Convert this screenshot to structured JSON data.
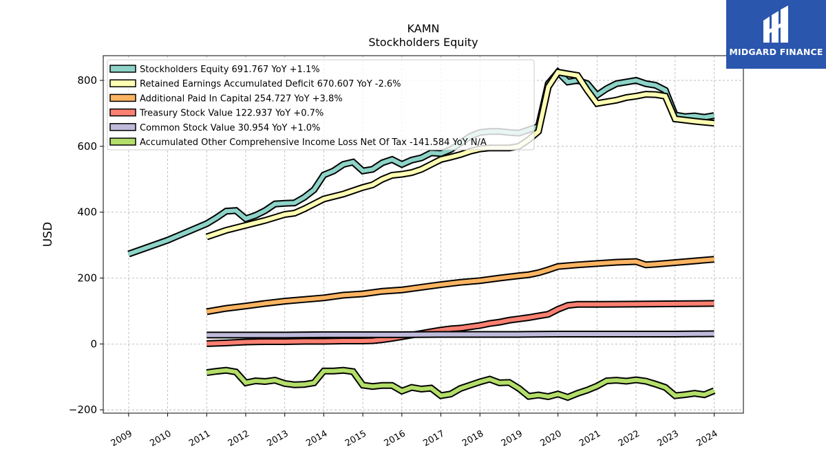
{
  "brand": {
    "name": "MIDGARD FINANCE"
  },
  "chart_data": {
    "type": "line",
    "title": "KAMN",
    "subtitle": "Stockholders  Equity",
    "ylabel": "USD",
    "xlim": [
      2008.35,
      2024.75
    ],
    "ylim": [
      -210,
      875
    ],
    "yticks": [
      -200,
      0,
      200,
      400,
      600,
      800
    ],
    "xticks": [
      "2009",
      "2010",
      "2011",
      "2012",
      "2013",
      "2014",
      "2015",
      "2016",
      "2017",
      "2018",
      "2019",
      "2020",
      "2021",
      "2022",
      "2023",
      "2024"
    ],
    "grid": true,
    "legend_position": "top-left",
    "series": [
      {
        "name": "Stockholders Equity  691.767 YoY +1.1%",
        "color": "#8dd3c7",
        "points": [
          [
            2009.0,
            273
          ],
          [
            2010.0,
            315
          ],
          [
            2011.0,
            365
          ],
          [
            2011.25,
            383
          ],
          [
            2011.5,
            403
          ],
          [
            2011.75,
            405
          ],
          [
            2012.0,
            380
          ],
          [
            2012.25,
            390
          ],
          [
            2012.5,
            405
          ],
          [
            2012.75,
            425
          ],
          [
            2013.0,
            427
          ],
          [
            2013.25,
            428
          ],
          [
            2013.5,
            445
          ],
          [
            2013.75,
            468
          ],
          [
            2014.0,
            513
          ],
          [
            2014.25,
            525
          ],
          [
            2014.5,
            545
          ],
          [
            2014.75,
            552
          ],
          [
            2015.0,
            525
          ],
          [
            2015.25,
            530
          ],
          [
            2015.5,
            550
          ],
          [
            2015.75,
            560
          ],
          [
            2016.0,
            545
          ],
          [
            2016.25,
            558
          ],
          [
            2016.5,
            565
          ],
          [
            2016.75,
            580
          ],
          [
            2017.0,
            578
          ],
          [
            2017.25,
            590
          ],
          [
            2017.5,
            610
          ],
          [
            2017.75,
            630
          ],
          [
            2018.0,
            642
          ],
          [
            2018.25,
            645
          ],
          [
            2018.5,
            645
          ],
          [
            2018.75,
            642
          ],
          [
            2019.0,
            640
          ],
          [
            2019.25,
            650
          ],
          [
            2019.5,
            660
          ],
          [
            2019.75,
            790
          ],
          [
            2020.0,
            825
          ],
          [
            2020.25,
            795
          ],
          [
            2020.5,
            800
          ],
          [
            2020.75,
            790
          ],
          [
            2021.0,
            755
          ],
          [
            2021.25,
            775
          ],
          [
            2021.5,
            790
          ],
          [
            2021.75,
            795
          ],
          [
            2022.0,
            800
          ],
          [
            2022.25,
            790
          ],
          [
            2022.5,
            785
          ],
          [
            2022.75,
            770
          ],
          [
            2023.0,
            695
          ],
          [
            2023.25,
            690
          ],
          [
            2023.5,
            692
          ],
          [
            2023.75,
            688
          ],
          [
            2024.0,
            693
          ]
        ]
      },
      {
        "name": "Retained Earnings Accumulated Deficit  670.607 YoY -2.6%",
        "color": "#ffffb3",
        "points": [
          [
            2011.0,
            325
          ],
          [
            2011.5,
            345
          ],
          [
            2012.0,
            360
          ],
          [
            2012.5,
            375
          ],
          [
            2013.0,
            393
          ],
          [
            2013.25,
            397
          ],
          [
            2013.5,
            410
          ],
          [
            2013.75,
            425
          ],
          [
            2014.0,
            440
          ],
          [
            2014.5,
            455
          ],
          [
            2015.0,
            475
          ],
          [
            2015.25,
            483
          ],
          [
            2015.5,
            500
          ],
          [
            2015.75,
            512
          ],
          [
            2016.0,
            515
          ],
          [
            2016.25,
            520
          ],
          [
            2016.5,
            530
          ],
          [
            2016.75,
            545
          ],
          [
            2017.0,
            560
          ],
          [
            2017.25,
            567
          ],
          [
            2017.5,
            575
          ],
          [
            2017.75,
            585
          ],
          [
            2018.0,
            592
          ],
          [
            2018.25,
            595
          ],
          [
            2018.5,
            595
          ],
          [
            2018.75,
            595
          ],
          [
            2019.0,
            600
          ],
          [
            2019.25,
            620
          ],
          [
            2019.5,
            645
          ],
          [
            2019.75,
            780
          ],
          [
            2020.0,
            825
          ],
          [
            2020.25,
            820
          ],
          [
            2020.5,
            815
          ],
          [
            2020.75,
            770
          ],
          [
            2021.0,
            730
          ],
          [
            2021.25,
            735
          ],
          [
            2021.5,
            740
          ],
          [
            2021.75,
            748
          ],
          [
            2022.0,
            752
          ],
          [
            2022.25,
            758
          ],
          [
            2022.5,
            757
          ],
          [
            2022.75,
            752
          ],
          [
            2023.0,
            683
          ],
          [
            2023.5,
            676
          ],
          [
            2024.0,
            670
          ]
        ]
      },
      {
        "name": "Additional Paid In Capital  254.727 YoY +3.8%",
        "color": "#fdb462",
        "points": [
          [
            2011.0,
            98
          ],
          [
            2011.5,
            108
          ],
          [
            2012.0,
            115
          ],
          [
            2012.5,
            123
          ],
          [
            2013.0,
            130
          ],
          [
            2013.5,
            135
          ],
          [
            2014.0,
            140
          ],
          [
            2014.5,
            148
          ],
          [
            2015.0,
            152
          ],
          [
            2015.5,
            160
          ],
          [
            2016.0,
            164
          ],
          [
            2016.5,
            172
          ],
          [
            2017.0,
            180
          ],
          [
            2017.5,
            187
          ],
          [
            2018.0,
            192
          ],
          [
            2018.5,
            200
          ],
          [
            2019.0,
            207
          ],
          [
            2019.25,
            210
          ],
          [
            2019.5,
            216
          ],
          [
            2019.75,
            225
          ],
          [
            2020.0,
            235
          ],
          [
            2020.5,
            240
          ],
          [
            2021.0,
            244
          ],
          [
            2021.5,
            248
          ],
          [
            2022.0,
            250
          ],
          [
            2022.25,
            240
          ],
          [
            2022.5,
            242
          ],
          [
            2023.0,
            247
          ],
          [
            2023.5,
            252
          ],
          [
            2024.0,
            257
          ]
        ]
      },
      {
        "name": "Treasury Stock Value  122.937 YoY +0.7%",
        "color": "#fb8072",
        "points": [
          [
            2011.0,
            1
          ],
          [
            2011.5,
            3
          ],
          [
            2012.0,
            6
          ],
          [
            2012.5,
            7
          ],
          [
            2013.0,
            7
          ],
          [
            2013.5,
            8
          ],
          [
            2014.0,
            8
          ],
          [
            2014.5,
            9
          ],
          [
            2015.0,
            9
          ],
          [
            2015.25,
            10
          ],
          [
            2015.5,
            13
          ],
          [
            2015.75,
            17
          ],
          [
            2016.0,
            22
          ],
          [
            2016.25,
            27
          ],
          [
            2016.5,
            32
          ],
          [
            2016.75,
            37
          ],
          [
            2017.0,
            42
          ],
          [
            2017.25,
            46
          ],
          [
            2017.5,
            48
          ],
          [
            2017.75,
            52
          ],
          [
            2018.0,
            56
          ],
          [
            2018.25,
            62
          ],
          [
            2018.5,
            66
          ],
          [
            2018.75,
            72
          ],
          [
            2019.0,
            76
          ],
          [
            2019.25,
            80
          ],
          [
            2019.5,
            85
          ],
          [
            2019.75,
            90
          ],
          [
            2020.0,
            105
          ],
          [
            2020.25,
            117
          ],
          [
            2020.5,
            120
          ],
          [
            2021.0,
            120
          ],
          [
            2022.0,
            121
          ],
          [
            2023.0,
            122
          ],
          [
            2024.0,
            123
          ]
        ]
      },
      {
        "name": "Common Stock Value  30.954 YoY +1.0%",
        "color": "#bebada",
        "points": [
          [
            2011.0,
            27
          ],
          [
            2012.0,
            27
          ],
          [
            2013.0,
            27
          ],
          [
            2014.0,
            28
          ],
          [
            2015.0,
            28
          ],
          [
            2016.0,
            28
          ],
          [
            2017.0,
            29
          ],
          [
            2018.0,
            29
          ],
          [
            2019.0,
            29
          ],
          [
            2020.0,
            30
          ],
          [
            2021.0,
            30
          ],
          [
            2022.0,
            30
          ],
          [
            2023.0,
            30
          ],
          [
            2024.0,
            31
          ]
        ]
      },
      {
        "name": "Accumulated Other Comprehensive Income Loss Net Of Tax  -141.584 YoY N/A",
        "color": "#b3de69",
        "points": [
          [
            2011.0,
            -87
          ],
          [
            2011.25,
            -83
          ],
          [
            2011.5,
            -80
          ],
          [
            2011.75,
            -85
          ],
          [
            2012.0,
            -118
          ],
          [
            2012.25,
            -112
          ],
          [
            2012.5,
            -114
          ],
          [
            2012.75,
            -110
          ],
          [
            2013.0,
            -120
          ],
          [
            2013.25,
            -124
          ],
          [
            2013.5,
            -123
          ],
          [
            2013.75,
            -118
          ],
          [
            2014.0,
            -82
          ],
          [
            2014.25,
            -82
          ],
          [
            2014.5,
            -80
          ],
          [
            2014.75,
            -84
          ],
          [
            2015.0,
            -125
          ],
          [
            2015.25,
            -129
          ],
          [
            2015.5,
            -126
          ],
          [
            2015.75,
            -126
          ],
          [
            2016.0,
            -143
          ],
          [
            2016.25,
            -132
          ],
          [
            2016.5,
            -137
          ],
          [
            2016.75,
            -134
          ],
          [
            2017.0,
            -157
          ],
          [
            2017.25,
            -152
          ],
          [
            2017.5,
            -135
          ],
          [
            2017.75,
            -125
          ],
          [
            2018.0,
            -115
          ],
          [
            2018.25,
            -107
          ],
          [
            2018.5,
            -118
          ],
          [
            2018.75,
            -117
          ],
          [
            2019.0,
            -135
          ],
          [
            2019.25,
            -159
          ],
          [
            2019.5,
            -155
          ],
          [
            2019.75,
            -160
          ],
          [
            2020.0,
            -152
          ],
          [
            2020.25,
            -162
          ],
          [
            2020.5,
            -150
          ],
          [
            2020.75,
            -140
          ],
          [
            2021.0,
            -128
          ],
          [
            2021.25,
            -112
          ],
          [
            2021.5,
            -110
          ],
          [
            2021.75,
            -113
          ],
          [
            2022.0,
            -109
          ],
          [
            2022.25,
            -113
          ],
          [
            2022.5,
            -122
          ],
          [
            2022.75,
            -132
          ],
          [
            2023.0,
            -157
          ],
          [
            2023.25,
            -154
          ],
          [
            2023.5,
            -150
          ],
          [
            2023.75,
            -154
          ],
          [
            2024.0,
            -142
          ]
        ]
      }
    ]
  }
}
